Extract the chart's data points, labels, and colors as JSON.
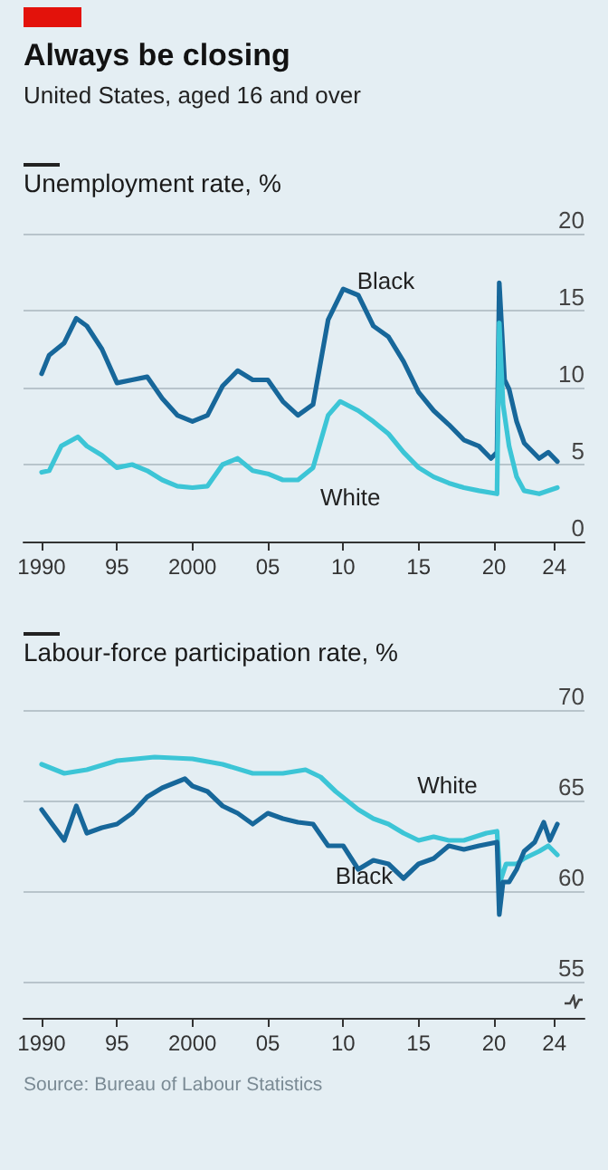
{
  "chart_data": [
    {
      "type": "line",
      "title": "Always be closing",
      "subtitle": "United States, aged 16 and over",
      "ylabel": "Unemployment rate, %",
      "xlim": [
        1988.8,
        2026
      ],
      "ylim": [
        0,
        20
      ],
      "yticks": [
        0,
        5,
        10,
        15,
        20
      ],
      "xticks": [
        {
          "value": 1990,
          "label": "1990"
        },
        {
          "value": 1995,
          "label": "95"
        },
        {
          "value": 2000,
          "label": "2000"
        },
        {
          "value": 2005,
          "label": "05"
        },
        {
          "value": 2010,
          "label": "10"
        },
        {
          "value": 2015,
          "label": "15"
        },
        {
          "value": 2020,
          "label": "20"
        },
        {
          "value": 2024,
          "label": "24"
        }
      ],
      "grid": "y",
      "series": [
        {
          "name": "Black",
          "color": "#17679a",
          "x": [
            1990,
            1990.5,
            1991.5,
            1992.3,
            1993,
            1994,
            1995,
            1996,
            1997,
            1998,
            1999,
            2000,
            2001,
            2002,
            2003,
            2004,
            2005,
            2006,
            2007,
            2008,
            2009,
            2010,
            2011,
            2012,
            2013,
            2014,
            2015,
            2016,
            2017,
            2018,
            2019,
            2019.8,
            2020.2,
            2020.35,
            2020.7,
            2021,
            2021.5,
            2022,
            2023,
            2023.6,
            2024.2
          ],
          "values": [
            10.9,
            12.1,
            12.9,
            14.5,
            14.0,
            12.5,
            10.3,
            10.5,
            10.7,
            9.3,
            8.2,
            7.8,
            8.2,
            10.1,
            11.1,
            10.5,
            10.5,
            9.1,
            8.2,
            8.9,
            14.4,
            16.4,
            16.0,
            14.0,
            13.3,
            11.7,
            9.7,
            8.5,
            7.6,
            6.6,
            6.2,
            5.4,
            5.8,
            16.8,
            10.5,
            9.9,
            7.8,
            6.4,
            5.4,
            5.8,
            5.2
          ]
        },
        {
          "name": "White",
          "color": "#3cc5d6",
          "x": [
            1990,
            1990.5,
            1991.3,
            1992.4,
            1993,
            1994,
            1995,
            1996,
            1997,
            1998,
            1999,
            2000,
            2001,
            2002,
            2003,
            2004,
            2005,
            2006,
            2007,
            2008,
            2009,
            2009.8,
            2011,
            2012,
            2013,
            2014,
            2015,
            2016,
            2017,
            2018,
            2019,
            2020.2,
            2020.35,
            2020.6,
            2021,
            2021.5,
            2022,
            2023,
            2024.2
          ],
          "values": [
            4.5,
            4.6,
            6.2,
            6.8,
            6.2,
            5.6,
            4.8,
            5.0,
            4.6,
            4.0,
            3.6,
            3.5,
            3.6,
            5.0,
            5.4,
            4.6,
            4.4,
            4.0,
            4.0,
            4.8,
            8.2,
            9.1,
            8.5,
            7.8,
            7.0,
            5.8,
            4.8,
            4.2,
            3.8,
            3.5,
            3.3,
            3.1,
            14.2,
            8.9,
            6.2,
            4.2,
            3.3,
            3.1,
            3.5
          ]
        }
      ]
    },
    {
      "type": "line",
      "ylabel": "Labour-force participation rate, %",
      "annotations": [
        "Source: Bureau of Labour Statistics"
      ],
      "xlim": [
        1988.8,
        2026
      ],
      "ylim": [
        53,
        70
      ],
      "yticks": [
        55,
        60,
        65,
        70
      ],
      "xticks": [
        {
          "value": 1990,
          "label": "1990"
        },
        {
          "value": 1995,
          "label": "95"
        },
        {
          "value": 2000,
          "label": "2000"
        },
        {
          "value": 2005,
          "label": "05"
        },
        {
          "value": 2010,
          "label": "10"
        },
        {
          "value": 2015,
          "label": "15"
        },
        {
          "value": 2020,
          "label": "20"
        },
        {
          "value": 2024,
          "label": "24"
        }
      ],
      "grid": "y",
      "series": [
        {
          "name": "White",
          "color": "#3cc5d6",
          "x": [
            1990,
            1991.5,
            1993,
            1995,
            1997.5,
            2000,
            2002,
            2004,
            2006,
            2007.5,
            2008.5,
            2009.5,
            2011,
            2012,
            2013,
            2014,
            2015,
            2016,
            2017,
            2018,
            2019.5,
            2020.2,
            2020.4,
            2020.8,
            2021.5,
            2022,
            2023,
            2023.6,
            2024.2
          ],
          "values": [
            67.0,
            66.5,
            66.7,
            67.2,
            67.4,
            67.3,
            67.0,
            66.5,
            66.5,
            66.7,
            66.3,
            65.5,
            64.5,
            64.0,
            63.7,
            63.2,
            62.8,
            63.0,
            62.8,
            62.8,
            63.2,
            63.3,
            60.5,
            61.5,
            61.5,
            61.8,
            62.2,
            62.5,
            62.0
          ]
        },
        {
          "name": "Black",
          "color": "#17679a",
          "x": [
            1990,
            1990.7,
            1991.5,
            1992.3,
            1993,
            1994,
            1995,
            1996,
            1997,
            1998,
            1999.5,
            2000,
            2001,
            2002,
            2003,
            2004,
            2005,
            2006,
            2007,
            2008,
            2009,
            2010,
            2011,
            2012,
            2013,
            2014,
            2015,
            2016,
            2017,
            2018,
            2019,
            2020.2,
            2020.35,
            2020.6,
            2021,
            2021.5,
            2022,
            2022.7,
            2023.3,
            2023.7,
            2024.2
          ],
          "values": [
            64.5,
            63.7,
            62.8,
            64.7,
            63.2,
            63.5,
            63.7,
            64.3,
            65.2,
            65.7,
            66.2,
            65.8,
            65.5,
            64.7,
            64.3,
            63.7,
            64.3,
            64.0,
            63.8,
            63.7,
            62.5,
            62.5,
            61.2,
            61.7,
            61.5,
            60.7,
            61.5,
            61.8,
            62.5,
            62.3,
            62.5,
            62.7,
            58.7,
            60.5,
            60.5,
            61.2,
            62.2,
            62.7,
            63.8,
            62.8,
            63.7
          ]
        }
      ]
    }
  ]
}
